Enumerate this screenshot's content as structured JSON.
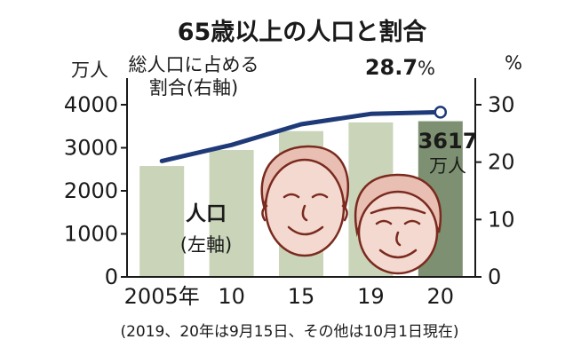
{
  "chart_data": {
    "type": "bar",
    "title": "65歳以上の人口と割合",
    "categories": [
      "2005年",
      "10",
      "15",
      "19",
      "20"
    ],
    "series": [
      {
        "name": "人口(左軸)",
        "type": "bar",
        "axis": "left",
        "values": [
          2576,
          2948,
          3387,
          3589,
          3617
        ],
        "color": "#c9d4b9",
        "highlight_color": "#7d9172",
        "highlight_index": 4
      },
      {
        "name": "総人口に占める割合(右軸)",
        "type": "line",
        "axis": "right",
        "values": [
          20.2,
          23.0,
          26.6,
          28.4,
          28.7
        ],
        "color": "#1f3a78"
      }
    ],
    "y_left": {
      "unit": "万人",
      "min": 0,
      "max": 4000,
      "ticks": [
        "4000",
        "3000",
        "2000",
        "1000",
        "0"
      ]
    },
    "y_right": {
      "unit": "%",
      "min": 0,
      "max": 30,
      "ticks": [
        "30",
        "20",
        "10",
        "0"
      ]
    },
    "annotations": {
      "bar_series_label_line1": "人口",
      "bar_series_label_line2": "(左軸)",
      "line_series_label_line1": "総人口に占める",
      "line_series_label_line2": "割合(右軸)",
      "last_line_value": "28.7",
      "last_line_unit": "%",
      "last_bar_value": "3617",
      "last_bar_unit": "万人"
    },
    "footnote": "(2019、20年は9月15日、その他は10月1日現在)",
    "grid": false
  }
}
